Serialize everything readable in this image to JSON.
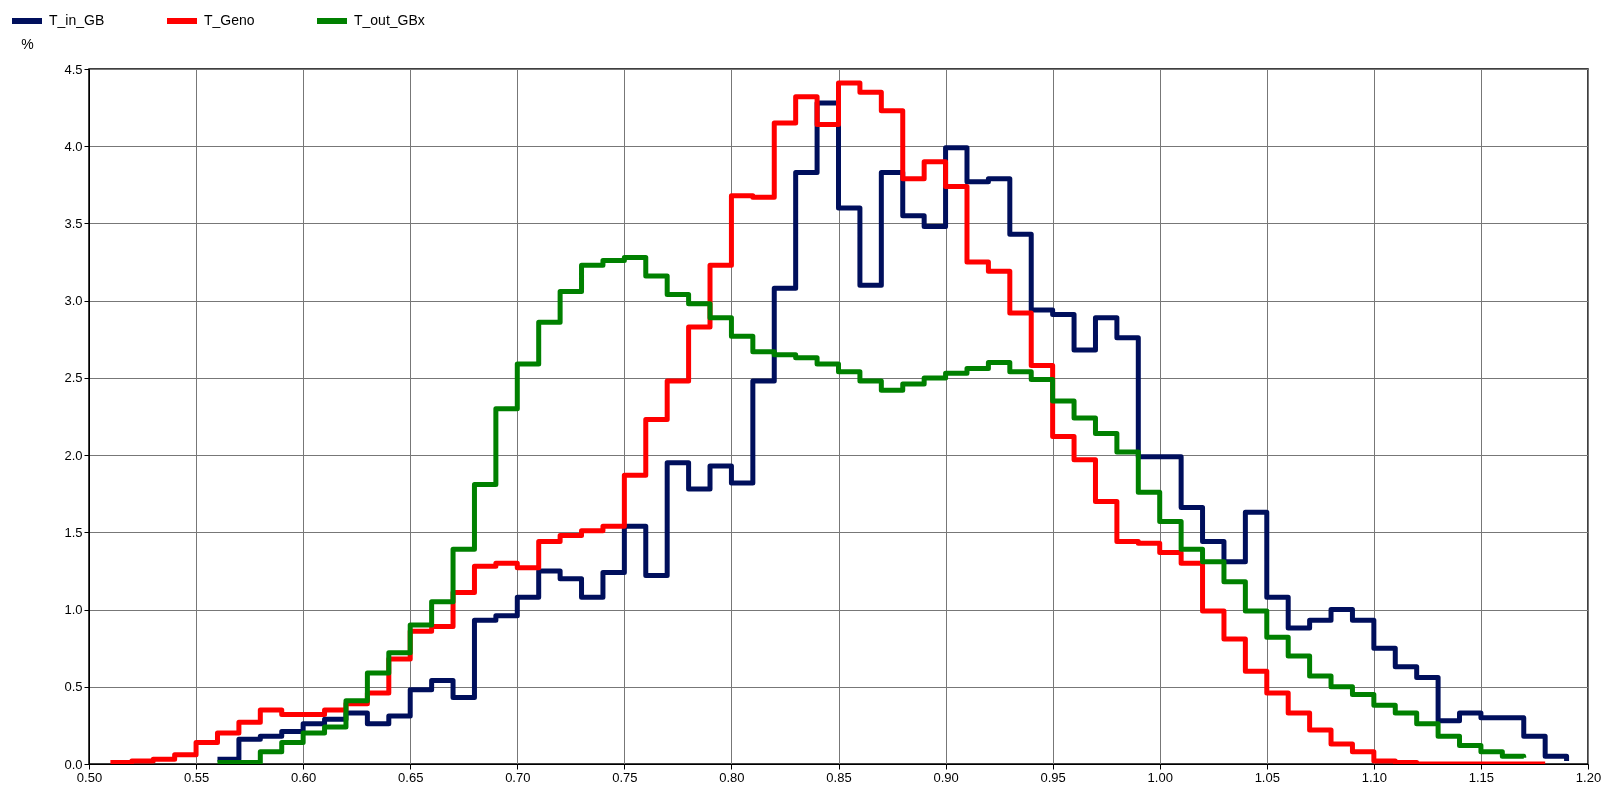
{
  "chart_data": {
    "type": "step",
    "ylabel": "%",
    "series": [
      {
        "name": "T_in_GB",
        "color": "#000f5c",
        "x": [
          0.56,
          0.57,
          0.58,
          0.59,
          0.6,
          0.61,
          0.62,
          0.63,
          0.64,
          0.65,
          0.66,
          0.67,
          0.68,
          0.69,
          0.7,
          0.71,
          0.72,
          0.73,
          0.74,
          0.75,
          0.76,
          0.77,
          0.78,
          0.79,
          0.8,
          0.81,
          0.82,
          0.83,
          0.84,
          0.85,
          0.86,
          0.87,
          0.88,
          0.89,
          0.9,
          0.91,
          0.92,
          0.93,
          0.94,
          0.95,
          0.96,
          0.97,
          0.98,
          0.99,
          1.0,
          1.01,
          1.02,
          1.03,
          1.04,
          1.05,
          1.06,
          1.07,
          1.08,
          1.09,
          1.1,
          1.11,
          1.12,
          1.13,
          1.14,
          1.15,
          1.16,
          1.17,
          1.18,
          1.19
        ],
        "values": [
          0.03,
          0.16,
          0.18,
          0.21,
          0.26,
          0.29,
          0.33,
          0.26,
          0.31,
          0.48,
          0.54,
          0.43,
          0.93,
          0.96,
          1.08,
          1.25,
          1.2,
          1.08,
          1.24,
          1.54,
          1.22,
          1.95,
          1.78,
          1.93,
          1.82,
          2.48,
          3.08,
          3.83,
          4.28,
          3.6,
          3.1,
          3.83,
          3.55,
          3.48,
          3.99,
          3.77,
          3.79,
          3.43,
          2.94,
          2.91,
          2.68,
          2.89,
          2.76,
          1.99,
          1.99,
          1.66,
          1.44,
          1.31,
          1.63,
          1.08,
          0.88,
          0.93,
          1.0,
          0.93,
          0.75,
          0.63,
          0.56,
          0.28,
          0.33,
          0.3,
          0.3,
          0.18,
          0.05,
          0.02
        ]
      },
      {
        "name": "T_Geno",
        "color": "#ff0000",
        "x": [
          0.51,
          0.52,
          0.53,
          0.54,
          0.55,
          0.56,
          0.57,
          0.58,
          0.59,
          0.6,
          0.61,
          0.62,
          0.63,
          0.64,
          0.65,
          0.66,
          0.67,
          0.68,
          0.69,
          0.7,
          0.71,
          0.72,
          0.73,
          0.74,
          0.75,
          0.76,
          0.77,
          0.78,
          0.79,
          0.8,
          0.81,
          0.82,
          0.83,
          0.84,
          0.85,
          0.86,
          0.87,
          0.88,
          0.89,
          0.9,
          0.91,
          0.92,
          0.93,
          0.94,
          0.95,
          0.96,
          0.97,
          0.98,
          0.99,
          1.0,
          1.01,
          1.02,
          1.03,
          1.04,
          1.05,
          1.06,
          1.07,
          1.08,
          1.09,
          1.1,
          1.11,
          1.12,
          1.13,
          1.14,
          1.15,
          1.16,
          1.17,
          1.18
        ],
        "values": [
          0.01,
          0.02,
          0.03,
          0.06,
          0.14,
          0.2,
          0.27,
          0.35,
          0.32,
          0.32,
          0.35,
          0.39,
          0.46,
          0.68,
          0.86,
          0.89,
          1.11,
          1.28,
          1.3,
          1.27,
          1.44,
          1.48,
          1.51,
          1.54,
          1.87,
          2.23,
          2.48,
          2.83,
          3.23,
          3.68,
          3.67,
          4.15,
          4.32,
          4.14,
          4.41,
          4.35,
          4.23,
          3.79,
          3.9,
          3.74,
          3.25,
          3.19,
          2.92,
          2.58,
          2.12,
          1.97,
          1.7,
          1.44,
          1.43,
          1.37,
          1.3,
          0.99,
          0.81,
          0.6,
          0.46,
          0.33,
          0.22,
          0.13,
          0.08,
          0.02,
          0.01,
          0,
          0,
          0,
          0,
          0,
          0,
          0
        ]
      },
      {
        "name": "T_out_GBx",
        "color": "#008000",
        "x": [
          0.56,
          0.57,
          0.58,
          0.59,
          0.6,
          0.61,
          0.62,
          0.63,
          0.64,
          0.65,
          0.66,
          0.67,
          0.68,
          0.69,
          0.7,
          0.71,
          0.72,
          0.73,
          0.74,
          0.75,
          0.76,
          0.77,
          0.78,
          0.79,
          0.8,
          0.81,
          0.82,
          0.83,
          0.84,
          0.85,
          0.86,
          0.87,
          0.88,
          0.89,
          0.9,
          0.91,
          0.92,
          0.93,
          0.94,
          0.95,
          0.96,
          0.97,
          0.98,
          0.99,
          1.0,
          1.01,
          1.02,
          1.03,
          1.04,
          1.05,
          1.06,
          1.07,
          1.08,
          1.09,
          1.1,
          1.11,
          1.12,
          1.13,
          1.14,
          1.15,
          1.16,
          1.17
        ],
        "values": [
          0.01,
          0.01,
          0.08,
          0.14,
          0.2,
          0.24,
          0.41,
          0.59,
          0.72,
          0.9,
          1.05,
          1.39,
          1.81,
          2.3,
          2.59,
          2.86,
          3.06,
          3.23,
          3.26,
          3.28,
          3.16,
          3.04,
          2.98,
          2.89,
          2.77,
          2.67,
          2.65,
          2.63,
          2.59,
          2.54,
          2.48,
          2.42,
          2.46,
          2.5,
          2.53,
          2.56,
          2.6,
          2.54,
          2.49,
          2.35,
          2.24,
          2.14,
          2.02,
          1.76,
          1.57,
          1.39,
          1.31,
          1.18,
          0.99,
          0.82,
          0.7,
          0.57,
          0.5,
          0.45,
          0.38,
          0.33,
          0.26,
          0.18,
          0.12,
          0.08,
          0.05,
          0.04
        ]
      }
    ],
    "xlim": [
      0.5,
      1.2
    ],
    "xticks": [
      {
        "value": 0.5,
        "label": "0.50"
      },
      {
        "value": 0.55,
        "label": "0.55"
      },
      {
        "value": 0.6,
        "label": "0.60"
      },
      {
        "value": 0.65,
        "label": "0.65"
      },
      {
        "value": 0.7,
        "label": "0.70"
      },
      {
        "value": 0.75,
        "label": "0.75"
      },
      {
        "value": 0.8,
        "label": "0.80"
      },
      {
        "value": 0.85,
        "label": "0.85"
      },
      {
        "value": 0.9,
        "label": "0.90"
      },
      {
        "value": 0.95,
        "label": "0.95"
      },
      {
        "value": 1.0,
        "label": "1.00"
      },
      {
        "value": 1.05,
        "label": "1.05"
      },
      {
        "value": 1.1,
        "label": "1.10"
      },
      {
        "value": 1.15,
        "label": "1.15"
      },
      {
        "value": 1.2,
        "label": "1.20"
      }
    ],
    "ylim": [
      0,
      4.5
    ],
    "yticks": [
      {
        "value": 0,
        "label": "0.0"
      },
      {
        "value": 0.5,
        "label": "0.5"
      },
      {
        "value": 1,
        "label": "1.0"
      },
      {
        "value": 1.5,
        "label": "1.5"
      },
      {
        "value": 2,
        "label": "2.0"
      },
      {
        "value": 2.5,
        "label": "2.5"
      },
      {
        "value": 3,
        "label": "3.0"
      },
      {
        "value": 3.5,
        "label": "3.5"
      },
      {
        "value": 4,
        "label": "4.0"
      },
      {
        "value": 4.5,
        "label": "4.5"
      }
    ],
    "grid": true,
    "legend": "top left"
  }
}
